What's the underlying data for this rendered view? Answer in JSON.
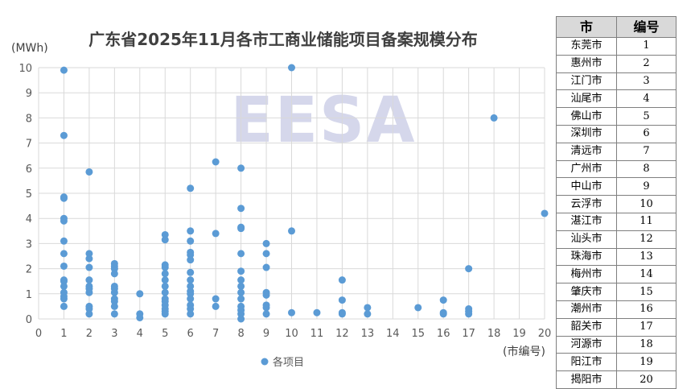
{
  "watermark": "EESA",
  "chart_data": {
    "type": "scatter",
    "title": "广东省2025年11月各市工商业储能项目备案规模分布",
    "ylabel": "(MWh)",
    "xlabel": "(市编号)",
    "xlim": [
      0,
      20
    ],
    "ylim": [
      0,
      10
    ],
    "xticks": [
      0,
      1,
      2,
      3,
      4,
      5,
      6,
      7,
      8,
      9,
      10,
      11,
      12,
      13,
      14,
      15,
      16,
      17,
      18,
      19,
      20
    ],
    "yticks": [
      0,
      1,
      2,
      3,
      4,
      5,
      6,
      7,
      8,
      9,
      10
    ],
    "grid": true,
    "legend_position": "bottom",
    "series": [
      {
        "name": "各项目",
        "color": "#5b9bd5",
        "points": [
          [
            1,
            9.9
          ],
          [
            1,
            7.3
          ],
          [
            1,
            4.85
          ],
          [
            1,
            4.8
          ],
          [
            1,
            4.0
          ],
          [
            1,
            3.9
          ],
          [
            1,
            3.1
          ],
          [
            1,
            2.6
          ],
          [
            1,
            2.1
          ],
          [
            1,
            1.55
          ],
          [
            1,
            1.5
          ],
          [
            1,
            1.3
          ],
          [
            1,
            1.05
          ],
          [
            1,
            0.9
          ],
          [
            1,
            0.8
          ],
          [
            1,
            0.5
          ],
          [
            2,
            5.85
          ],
          [
            2,
            2.6
          ],
          [
            2,
            2.4
          ],
          [
            2,
            2.05
          ],
          [
            2,
            1.55
          ],
          [
            2,
            1.3
          ],
          [
            2,
            1.2
          ],
          [
            2,
            1.05
          ],
          [
            2,
            0.5
          ],
          [
            2,
            0.4
          ],
          [
            2,
            0.2
          ],
          [
            3,
            2.2
          ],
          [
            3,
            2.1
          ],
          [
            3,
            2.0
          ],
          [
            3,
            1.8
          ],
          [
            3,
            1.3
          ],
          [
            3,
            1.2
          ],
          [
            3,
            1.05
          ],
          [
            3,
            0.8
          ],
          [
            3,
            0.7
          ],
          [
            3,
            0.5
          ],
          [
            3,
            0.2
          ],
          [
            4,
            1.0
          ],
          [
            4,
            0.2
          ],
          [
            4,
            0.05
          ],
          [
            5,
            3.35
          ],
          [
            5,
            3.15
          ],
          [
            5,
            2.15
          ],
          [
            5,
            2.05
          ],
          [
            5,
            1.8
          ],
          [
            5,
            1.55
          ],
          [
            5,
            1.3
          ],
          [
            5,
            1.05
          ],
          [
            5,
            0.8
          ],
          [
            5,
            0.7
          ],
          [
            5,
            0.55
          ],
          [
            5,
            0.4
          ],
          [
            5,
            0.3
          ],
          [
            5,
            0.2
          ],
          [
            6,
            5.2
          ],
          [
            6,
            3.5
          ],
          [
            6,
            3.1
          ],
          [
            6,
            2.65
          ],
          [
            6,
            2.55
          ],
          [
            6,
            2.35
          ],
          [
            6,
            1.85
          ],
          [
            6,
            1.55
          ],
          [
            6,
            1.3
          ],
          [
            6,
            1.1
          ],
          [
            6,
            1.0
          ],
          [
            6,
            0.8
          ],
          [
            6,
            0.55
          ],
          [
            6,
            0.4
          ],
          [
            6,
            0.2
          ],
          [
            7,
            6.25
          ],
          [
            7,
            3.4
          ],
          [
            7,
            0.8
          ],
          [
            7,
            0.5
          ],
          [
            8,
            6.0
          ],
          [
            8,
            4.4
          ],
          [
            8,
            3.65
          ],
          [
            8,
            3.6
          ],
          [
            8,
            2.6
          ],
          [
            8,
            1.9
          ],
          [
            8,
            1.55
          ],
          [
            8,
            1.3
          ],
          [
            8,
            1.05
          ],
          [
            8,
            0.8
          ],
          [
            8,
            0.5
          ],
          [
            8,
            0.35
          ],
          [
            8,
            0.2
          ],
          [
            8,
            0.0
          ],
          [
            9,
            3.0
          ],
          [
            9,
            2.6
          ],
          [
            9,
            2.05
          ],
          [
            9,
            1.05
          ],
          [
            9,
            0.95
          ],
          [
            9,
            0.55
          ],
          [
            9,
            0.45
          ],
          [
            9,
            0.2
          ],
          [
            10,
            10.0
          ],
          [
            10,
            3.5
          ],
          [
            10,
            0.25
          ],
          [
            11,
            0.25
          ],
          [
            12,
            1.55
          ],
          [
            12,
            0.75
          ],
          [
            12,
            0.25
          ],
          [
            12,
            0.2
          ],
          [
            13,
            0.45
          ],
          [
            13,
            0.2
          ],
          [
            15,
            0.45
          ],
          [
            16,
            0.75
          ],
          [
            16,
            0.25
          ],
          [
            16,
            0.2
          ],
          [
            17,
            2.0
          ],
          [
            17,
            0.4
          ],
          [
            17,
            0.3
          ],
          [
            17,
            0.2
          ],
          [
            18,
            8.0
          ],
          [
            20,
            4.2
          ]
        ]
      }
    ]
  },
  "table": {
    "headers": [
      "市",
      "编号"
    ],
    "rows": [
      [
        "东莞市",
        "1"
      ],
      [
        "惠州市",
        "2"
      ],
      [
        "江门市",
        "3"
      ],
      [
        "汕尾市",
        "4"
      ],
      [
        "佛山市",
        "5"
      ],
      [
        "深圳市",
        "6"
      ],
      [
        "清远市",
        "7"
      ],
      [
        "广州市",
        "8"
      ],
      [
        "中山市",
        "9"
      ],
      [
        "云浮市",
        "10"
      ],
      [
        "湛江市",
        "11"
      ],
      [
        "汕头市",
        "12"
      ],
      [
        "珠海市",
        "13"
      ],
      [
        "梅州市",
        "14"
      ],
      [
        "肇庆市",
        "15"
      ],
      [
        "潮州市",
        "16"
      ],
      [
        "韶关市",
        "17"
      ],
      [
        "河源市",
        "18"
      ],
      [
        "阳江市",
        "19"
      ],
      [
        "揭阳市",
        "20"
      ]
    ]
  }
}
